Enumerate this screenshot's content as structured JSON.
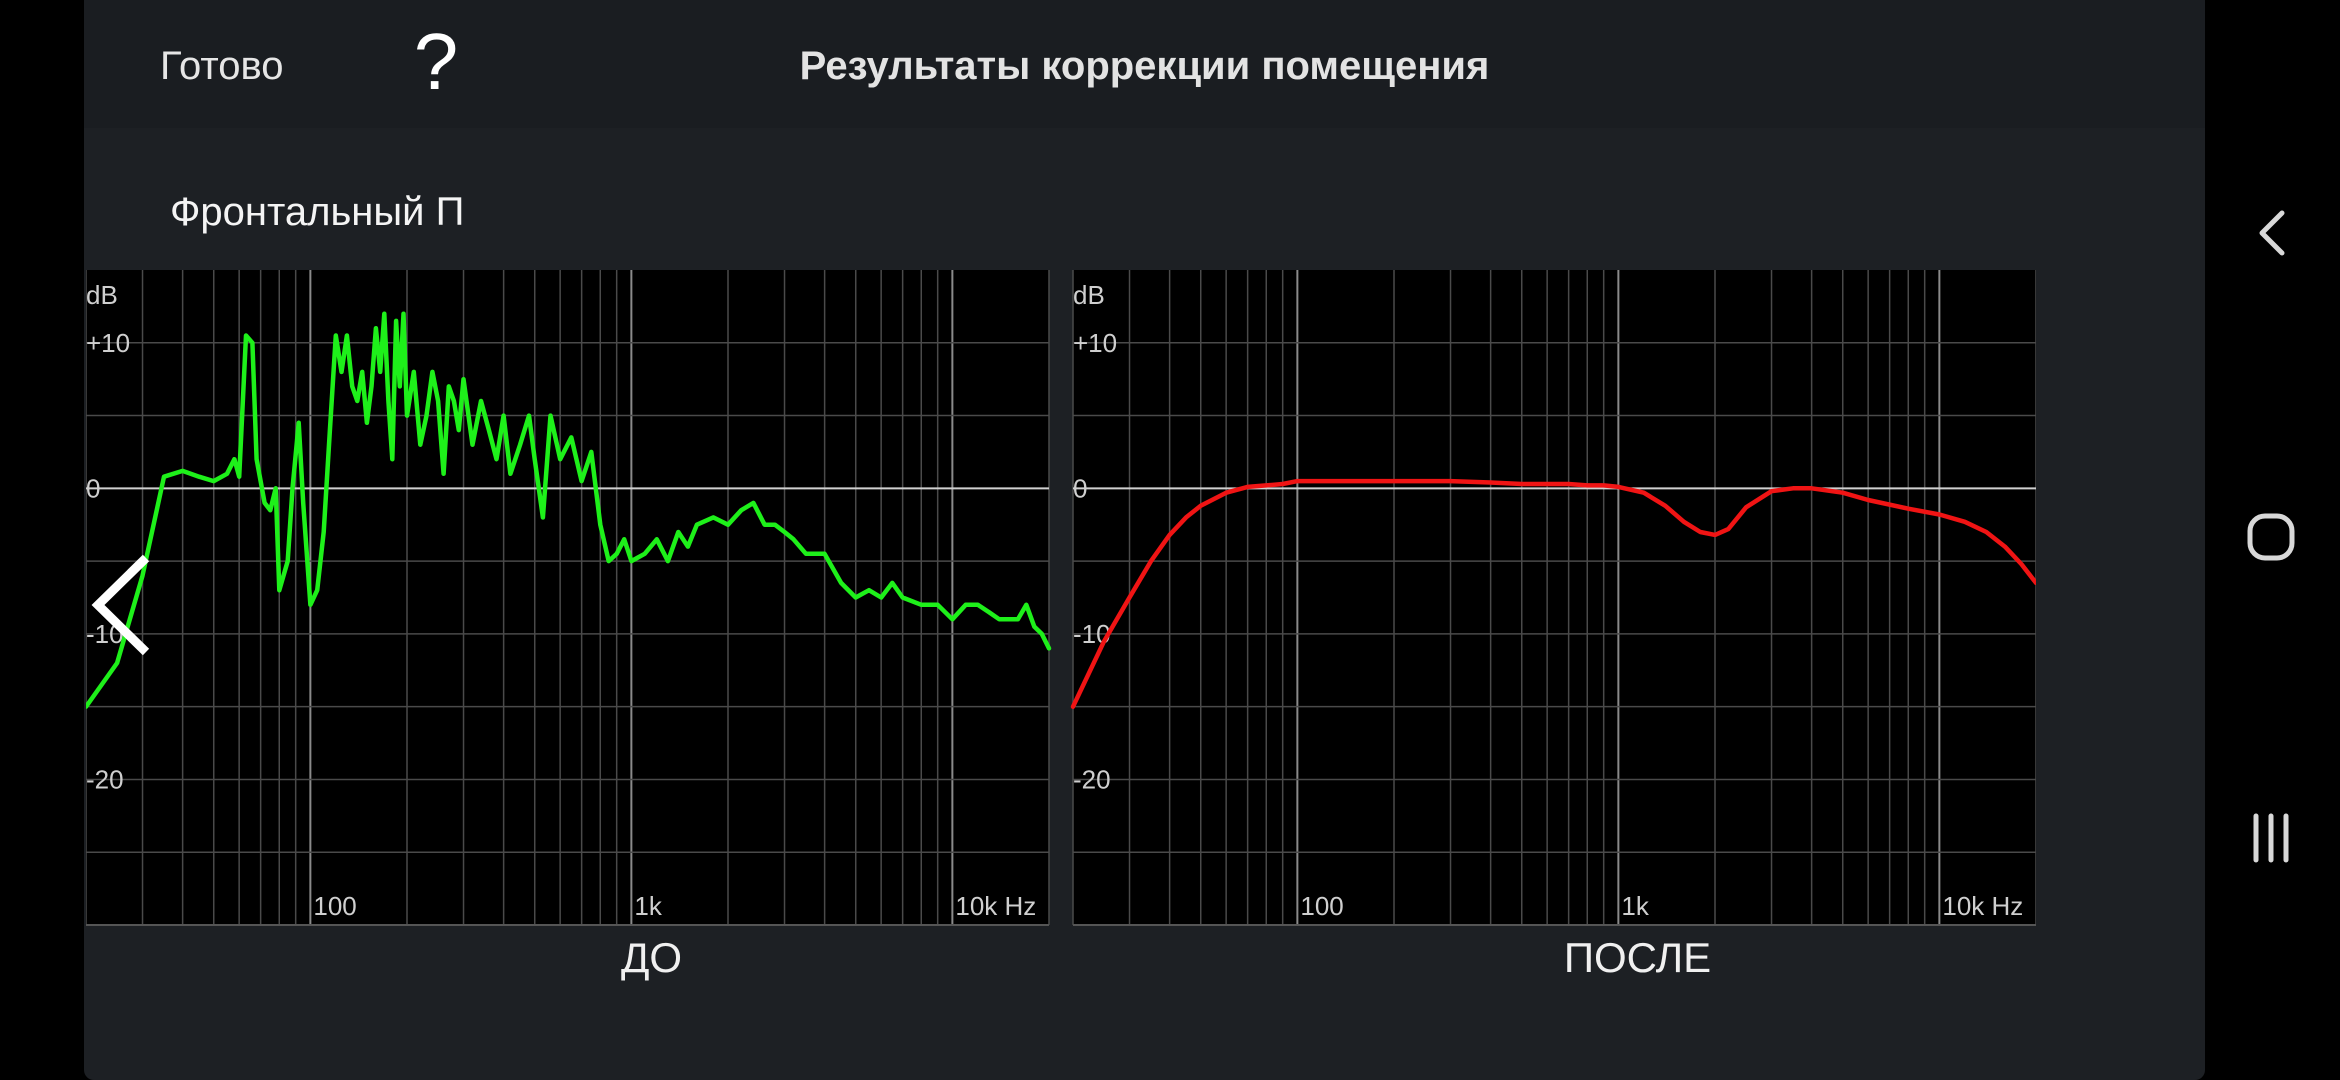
{
  "header": {
    "done_label": "Готово",
    "help_label": "?",
    "title": "Результаты коррекции помещения"
  },
  "section": {
    "title": "Фронтальный П"
  },
  "colors": {
    "before_curve": "#1ef01a",
    "after_curve": "#f01414",
    "grid": "#6e6e6e",
    "zero_line": "#d0d0d0"
  },
  "icons": {
    "prev": "chevron-left-icon",
    "nav_back": "back-icon",
    "nav_home": "home-icon",
    "nav_recents": "recents-icon"
  },
  "chart_data": [
    {
      "type": "line",
      "caption": "ДО",
      "ylabel": "dB",
      "x_scale": "log",
      "xlim": [
        20,
        20000
      ],
      "ylim": [
        -30,
        15
      ],
      "y_tick_labels": [
        {
          "value": 10,
          "label": "+10"
        },
        {
          "value": 0,
          "label": "0"
        },
        {
          "value": -10,
          "label": "-10"
        },
        {
          "value": -20,
          "label": "-20"
        }
      ],
      "x_tick_labels": [
        {
          "value": 100,
          "label": "100"
        },
        {
          "value": 1000,
          "label": "1k"
        },
        {
          "value": 10000,
          "label": "10k Hz"
        }
      ],
      "grid": true,
      "series": [
        {
          "color": "#1ef01a",
          "x": [
            20,
            25,
            30,
            35,
            40,
            45,
            50,
            55,
            58,
            60,
            63,
            66,
            68,
            72,
            75,
            78,
            80,
            85,
            88,
            92,
            95,
            100,
            105,
            110,
            115,
            120,
            125,
            130,
            135,
            140,
            145,
            150,
            155,
            160,
            165,
            170,
            175,
            180,
            185,
            190,
            195,
            200,
            210,
            220,
            230,
            240,
            250,
            260,
            270,
            280,
            290,
            300,
            320,
            340,
            360,
            380,
            400,
            420,
            450,
            480,
            500,
            530,
            560,
            600,
            650,
            700,
            750,
            800,
            850,
            900,
            950,
            1000,
            1100,
            1200,
            1300,
            1400,
            1500,
            1600,
            1800,
            2000,
            2200,
            2400,
            2600,
            2800,
            3000,
            3200,
            3500,
            4000,
            4500,
            5000,
            5500,
            6000,
            6500,
            7000,
            8000,
            9000,
            10000,
            11000,
            12000,
            13000,
            14000,
            15000,
            16000,
            17000,
            18000,
            19000,
            20000
          ],
          "y": [
            -15,
            -12,
            -6,
            0.8,
            1.2,
            0.8,
            0.5,
            1,
            2,
            0.8,
            10.5,
            10,
            2,
            -1,
            -1.5,
            0,
            -7,
            -5,
            0,
            4.5,
            -1,
            -8,
            -7,
            -3,
            4,
            10.5,
            8,
            10.5,
            7,
            6,
            8,
            4.5,
            7,
            11,
            8,
            12,
            6,
            2,
            11.5,
            7,
            12,
            5,
            8,
            3,
            5,
            8,
            6,
            1,
            7,
            6,
            4,
            7.5,
            3,
            6,
            4,
            2,
            5,
            1,
            3,
            5,
            2,
            -2,
            5,
            2,
            3.5,
            0.5,
            2.5,
            -2.5,
            -5,
            -4.5,
            -3.5,
            -5,
            -4.5,
            -3.5,
            -5,
            -3,
            -4,
            -2.5,
            -2,
            -2.5,
            -1.5,
            -1,
            -2.5,
            -2.5,
            -3,
            -3.5,
            -4.5,
            -4.5,
            -6.5,
            -7.5,
            -7,
            -7.5,
            -6.5,
            -7.5,
            -8,
            -8,
            -9,
            -8,
            -8,
            -8.5,
            -9,
            -9,
            -9,
            -8,
            -9.5,
            -10,
            -11
          ]
        }
      ]
    },
    {
      "type": "line",
      "caption": "ПОСЛЕ",
      "ylabel": "dB",
      "x_scale": "log",
      "xlim": [
        20,
        20000
      ],
      "ylim": [
        -30,
        15
      ],
      "y_tick_labels": [
        {
          "value": 10,
          "label": "+10"
        },
        {
          "value": 0,
          "label": "0"
        },
        {
          "value": -10,
          "label": "-10"
        },
        {
          "value": -20,
          "label": "-20"
        }
      ],
      "x_tick_labels": [
        {
          "value": 100,
          "label": "100"
        },
        {
          "value": 1000,
          "label": "1k"
        },
        {
          "value": 10000,
          "label": "10k Hz"
        }
      ],
      "grid": true,
      "series": [
        {
          "color": "#f01414",
          "x": [
            20,
            25,
            30,
            35,
            40,
            45,
            50,
            60,
            70,
            80,
            90,
            100,
            120,
            150,
            200,
            250,
            300,
            400,
            500,
            600,
            700,
            800,
            900,
            1000,
            1200,
            1400,
            1600,
            1800,
            2000,
            2200,
            2500,
            3000,
            3500,
            4000,
            5000,
            6000,
            8000,
            10000,
            12000,
            14000,
            16000,
            18000,
            20000
          ],
          "y": [
            -15,
            -10.5,
            -7.5,
            -5,
            -3.2,
            -2,
            -1.2,
            -0.3,
            0.1,
            0.2,
            0.3,
            0.5,
            0.5,
            0.5,
            0.5,
            0.5,
            0.5,
            0.4,
            0.3,
            0.3,
            0.3,
            0.2,
            0.2,
            0.1,
            -0.3,
            -1.2,
            -2.3,
            -3,
            -3.2,
            -2.8,
            -1.3,
            -0.2,
            0,
            0,
            -0.3,
            -0.8,
            -1.4,
            -1.8,
            -2.3,
            -3,
            -4,
            -5.2,
            -6.5
          ]
        }
      ]
    }
  ]
}
